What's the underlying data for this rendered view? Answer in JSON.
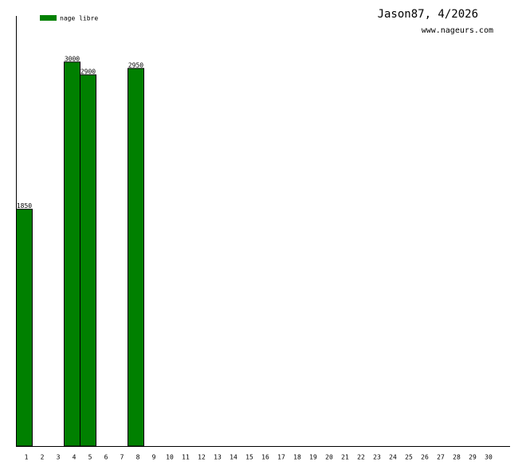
{
  "chart_data": {
    "type": "bar",
    "title": "Jason87, 4/2026",
    "subtitle": "www.nageurs.com",
    "categories": [
      "1",
      "2",
      "3",
      "4",
      "5",
      "6",
      "7",
      "8",
      "9",
      "10",
      "11",
      "12",
      "13",
      "14",
      "15",
      "16",
      "17",
      "18",
      "19",
      "20",
      "21",
      "22",
      "23",
      "24",
      "25",
      "26",
      "27",
      "28",
      "29",
      "30"
    ],
    "series": [
      {
        "name": "nage libre",
        "color": "#008000",
        "values": [
          1850,
          null,
          null,
          3000,
          2900,
          null,
          null,
          2950,
          null,
          null,
          null,
          null,
          null,
          null,
          null,
          null,
          null,
          null,
          null,
          null,
          null,
          null,
          null,
          null,
          null,
          null,
          null,
          null,
          null,
          null
        ]
      }
    ],
    "ylim": [
      0,
      3360
    ]
  }
}
